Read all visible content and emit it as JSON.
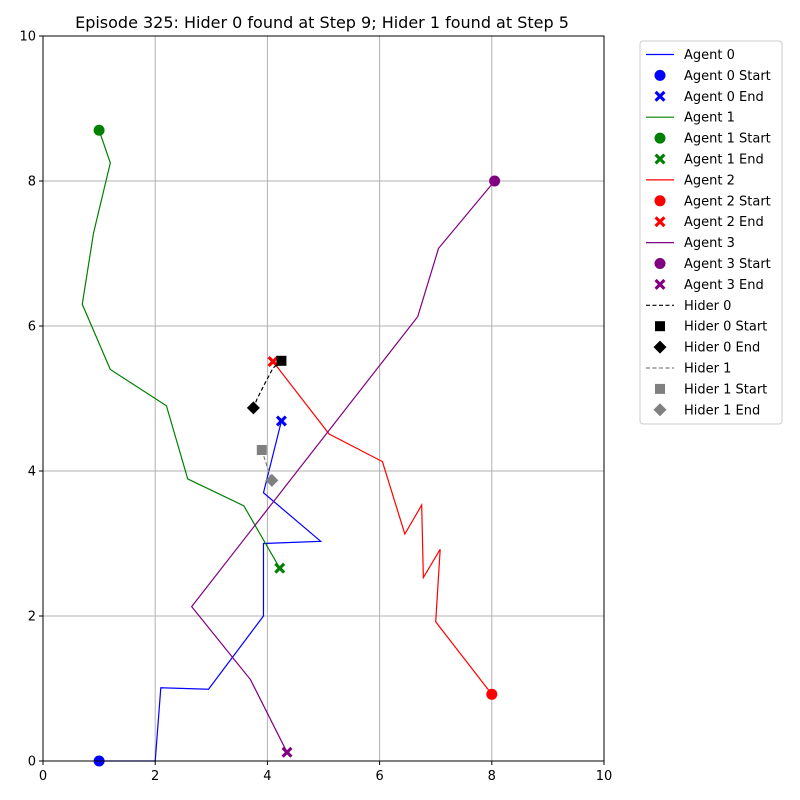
{
  "chart_data": {
    "type": "line",
    "title": "Episode 325: Hider 0 found at Step 9; Hider 1 found at Step 5",
    "xlabel": "",
    "ylabel": "",
    "xlim": [
      0,
      10
    ],
    "ylim": [
      0,
      10
    ],
    "xticks": [
      "0",
      "2",
      "4",
      "6",
      "8",
      "10"
    ],
    "yticks": [
      "0",
      "2",
      "4",
      "6",
      "8",
      "10"
    ],
    "grid": true,
    "legend_position": "outside-top-right",
    "series": [
      {
        "name": "Agent 0",
        "color": "#0000ff",
        "dash": "solid",
        "start_marker": "circle",
        "end_marker": "x",
        "start_label": "Agent 0 Start",
        "end_label": "Agent 0 End",
        "points": [
          [
            1.0,
            0.0
          ],
          [
            2.0,
            0.0
          ],
          [
            2.1,
            1.01
          ],
          [
            2.95,
            0.99
          ],
          [
            3.93,
            2.0
          ],
          [
            3.93,
            3.0
          ],
          [
            4.95,
            3.03
          ],
          [
            3.93,
            3.7
          ],
          [
            4.25,
            4.69
          ]
        ]
      },
      {
        "name": "Agent 1",
        "color": "#008000",
        "dash": "solid",
        "start_marker": "circle",
        "end_marker": "x",
        "start_label": "Agent 1 Start",
        "end_label": "Agent 1 End",
        "points": [
          [
            1.0,
            8.7
          ],
          [
            1.2,
            8.25
          ],
          [
            0.9,
            7.28
          ],
          [
            0.7,
            6.3
          ],
          [
            1.2,
            5.4
          ],
          [
            2.2,
            4.9
          ],
          [
            2.58,
            3.89
          ],
          [
            3.58,
            3.52
          ],
          [
            4.22,
            2.66
          ]
        ]
      },
      {
        "name": "Agent 2",
        "color": "#ff0000",
        "dash": "solid",
        "start_marker": "circle",
        "end_marker": "x",
        "start_label": "Agent 2 Start",
        "end_label": "Agent 2 End",
        "points": [
          [
            8.0,
            0.92
          ],
          [
            7.0,
            1.92
          ],
          [
            7.08,
            2.92
          ],
          [
            6.78,
            2.53
          ],
          [
            6.75,
            3.53
          ],
          [
            6.45,
            3.13
          ],
          [
            6.05,
            4.13
          ],
          [
            5.1,
            4.51
          ],
          [
            4.1,
            5.51
          ]
        ]
      },
      {
        "name": "Agent 3",
        "color": "#800080",
        "dash": "solid",
        "start_marker": "circle",
        "end_marker": "x",
        "start_label": "Agent 3 Start",
        "end_label": "Agent 3 End",
        "points": [
          [
            8.05,
            8.0
          ],
          [
            7.05,
            7.07
          ],
          [
            6.68,
            6.13
          ],
          [
            2.65,
            2.13
          ],
          [
            3.7,
            1.12
          ],
          [
            4.35,
            0.12
          ]
        ]
      },
      {
        "name": "Hider 0",
        "color": "#000000",
        "dash": "dashed",
        "start_marker": "square",
        "end_marker": "diamond",
        "start_label": "Hider 0 Start",
        "end_label": "Hider 0 End",
        "points": [
          [
            4.25,
            5.52
          ],
          [
            4.1,
            5.42
          ],
          [
            3.95,
            5.2
          ],
          [
            3.82,
            5.0
          ],
          [
            3.75,
            4.87
          ]
        ]
      },
      {
        "name": "Hider 1",
        "color": "#808080",
        "dash": "dashed",
        "start_marker": "square",
        "end_marker": "diamond",
        "start_label": "Hider 1 Start",
        "end_label": "Hider 1 End",
        "points": [
          [
            3.9,
            4.29
          ],
          [
            4.0,
            4.05
          ],
          [
            4.08,
            3.87
          ]
        ]
      }
    ]
  }
}
